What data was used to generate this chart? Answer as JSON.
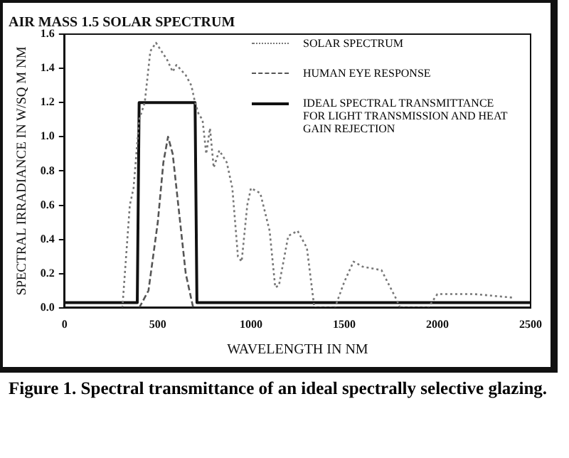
{
  "chart_data": {
    "type": "line",
    "title": "AIR MASS 1.5 SOLAR SPECTRUM",
    "xlabel": "WAVELENGTH IN NM",
    "ylabel": "SPECTRAL IRRADIANCE IN W/SQ M NM",
    "annotations": [
      "Figure 1.  Spectral transmittance of an ideal spectrally selective glazing."
    ],
    "xlim": [
      0,
      2500
    ],
    "xticks": [
      0,
      500,
      1000,
      1500,
      2000,
      2500
    ],
    "ylim": [
      0,
      1.6
    ],
    "yticks": [
      {
        "value": 0,
        "label": "0.0"
      },
      {
        "value": 0.2,
        "label": "0.2"
      },
      {
        "value": 0.4,
        "label": "0.4"
      },
      {
        "value": 0.6,
        "label": "0.6"
      },
      {
        "value": 0.8,
        "label": "0.8"
      },
      {
        "value": 1,
        "label": "1.0"
      },
      {
        "value": 1.2,
        "label": "1.2"
      },
      {
        "value": 1.4,
        "label": "1.4"
      },
      {
        "value": 1.6,
        "label": "1.6"
      }
    ],
    "grid": false,
    "legend": "top right",
    "marker": "none",
    "series": [
      {
        "name": "SOLAR SPECTRUM",
        "color": "#777777",
        "line_style": "dotted",
        "x": [
          310,
          330,
          350,
          370,
          400,
          430,
          460,
          490,
          520,
          550,
          580,
          600,
          650,
          680,
          700,
          720,
          740,
          760,
          780,
          800,
          830,
          870,
          900,
          930,
          950,
          980,
          1000,
          1050,
          1100,
          1130,
          1150,
          1200,
          1250,
          1300,
          1340,
          1450,
          1500,
          1550,
          1600,
          1700,
          1780,
          1800,
          1950,
          2000,
          2100,
          2200,
          2300,
          2400
        ],
        "values": [
          0,
          0.3,
          0.6,
          0.7,
          1.1,
          1.2,
          1.5,
          1.55,
          1.5,
          1.45,
          1.38,
          1.42,
          1.36,
          1.3,
          1.2,
          1.13,
          1.1,
          0.9,
          1.05,
          0.82,
          0.92,
          0.85,
          0.7,
          0.3,
          0.27,
          0.6,
          0.7,
          0.67,
          0.45,
          0.12,
          0.13,
          0.42,
          0.45,
          0.35,
          0,
          0,
          0.15,
          0.27,
          0.24,
          0.22,
          0.05,
          0,
          0,
          0.08,
          0.08,
          0.08,
          0.07,
          0.06
        ]
      },
      {
        "name": "HUMAN EYE RESPONSE",
        "color": "#555555",
        "line_style": "dashed",
        "x": [
          400,
          450,
          500,
          530,
          555,
          580,
          600,
          650,
          690
        ],
        "values": [
          0,
          0.1,
          0.5,
          0.85,
          1.0,
          0.9,
          0.7,
          0.2,
          0
        ]
      },
      {
        "name": "IDEAL SPECTRAL TRANSMITTANCE FOR LIGHT TRANSMISSION AND HEAT GAIN REJECTION",
        "color": "#111111",
        "line_style": "solid",
        "x": [
          0,
          390,
          400,
          700,
          710,
          2500
        ],
        "values": [
          0.03,
          0.03,
          1.2,
          1.2,
          0.03,
          0.03
        ]
      }
    ]
  }
}
